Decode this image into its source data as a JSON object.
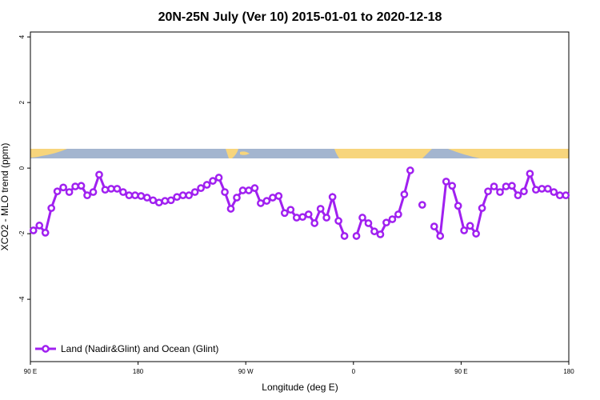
{
  "chart_data": {
    "type": "line",
    "title": "20N-25N July (Ver 10)   2015-01-01 to 2020-12-18",
    "x_label": "Longitude (deg E)",
    "y_label": "XCO2 - MLO trend (ppm)",
    "xlim": [
      90,
      540
    ],
    "ylim": [
      -5.9,
      4.15
    ],
    "xticks": [
      {
        "value": 90,
        "label": "90 E"
      },
      180,
      {
        "value": 270,
        "label": "90 W"
      },
      {
        "value": 360,
        "label": "0"
      },
      {
        "value": 450,
        "label": "90 E"
      },
      {
        "value": 540,
        "label": "180"
      }
    ],
    "yticks": [
      -4,
      -2,
      0,
      2,
      4
    ],
    "legend_position": "bottom-left",
    "x": [
      92.5,
      97.5,
      102.5,
      107.5,
      112.5,
      117.5,
      122.5,
      127.5,
      132.5,
      137.5,
      142.5,
      147.5,
      152.5,
      157.5,
      162.5,
      167.5,
      172.5,
      177.5,
      182.5,
      187.5,
      192.5,
      197.5,
      202.5,
      207.5,
      212.5,
      217.5,
      222.5,
      227.5,
      232.5,
      237.5,
      242.5,
      247.5,
      252.5,
      257.5,
      262.5,
      267.5,
      272.5,
      277.5,
      282.5,
      287.5,
      292.5,
      297.5,
      302.5,
      307.5,
      312.5,
      317.5,
      322.5,
      327.5,
      332.5,
      337.5,
      342.5,
      347.5,
      352.5,
      357.5,
      362.5,
      367.5,
      372.5,
      377.5,
      382.5,
      387.5,
      392.5,
      397.5,
      402.5,
      407.5,
      412.5,
      417.5,
      422.5,
      427.5,
      432.5,
      437.5,
      442.5,
      447.5,
      452.5,
      457.5,
      462.5,
      467.5,
      472.5,
      477.5,
      482.5,
      487.5,
      492.5,
      497.5,
      502.5,
      507.5,
      512.5,
      517.5,
      522.5,
      527.5,
      532.5,
      537.5
    ],
    "series": [
      {
        "name": "Land (Nadir&Glint) and Ocean (Glint)",
        "color": "#a020f0",
        "values": [
          -1.9,
          -1.75,
          -1.97,
          -1.22,
          -0.71,
          -0.59,
          -0.73,
          -0.56,
          -0.54,
          -0.83,
          -0.73,
          -0.2,
          -0.66,
          -0.63,
          -0.63,
          -0.73,
          -0.83,
          -0.83,
          -0.85,
          -0.9,
          -0.98,
          -1.05,
          -1.0,
          -0.98,
          -0.88,
          -0.83,
          -0.83,
          -0.73,
          -0.61,
          -0.51,
          -0.39,
          -0.29,
          -0.73,
          -1.24,
          -0.9,
          -0.68,
          -0.68,
          -0.61,
          -1.07,
          -1.0,
          -0.9,
          -0.85,
          -1.37,
          -1.27,
          -1.51,
          -1.49,
          -1.41,
          -1.68,
          -1.24,
          -1.51,
          -0.88,
          -1.61,
          -2.07,
          null,
          -2.07,
          -1.51,
          -1.68,
          -1.93,
          -2.02,
          -1.66,
          -1.56,
          -1.41,
          -0.8,
          -0.07,
          null,
          -1.12,
          null,
          -1.78,
          -2.07,
          -0.41,
          -0.54,
          -1.15,
          -1.9,
          -1.76,
          -2.0,
          -1.22,
          -0.71,
          -0.56,
          -0.73,
          -0.56,
          -0.54,
          -0.83,
          -0.71,
          -0.17,
          -0.66,
          -0.63,
          -0.63,
          -0.73,
          -0.83,
          -0.83
        ]
      }
    ]
  }
}
